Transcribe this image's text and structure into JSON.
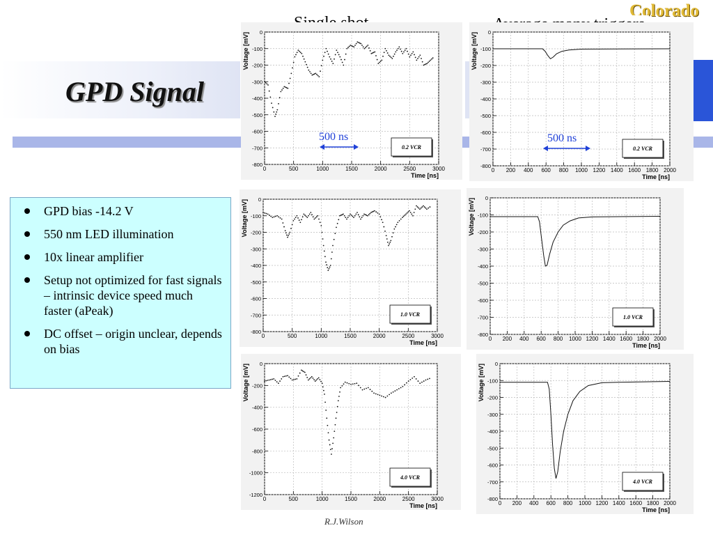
{
  "slide": {
    "title": "GPD Signal",
    "logo_text": "Colorado",
    "column_headers": [
      "Single shot",
      "Average many triggers"
    ],
    "bullets": [
      "GPD bias -14.2 V",
      "550 nm LED illumination",
      "10x linear amplifier",
      "Setup not optimized for fast signals – intrinsic device speed much faster (aPeak)",
      "DC offset – origin unclear, depends on bias"
    ],
    "author": "R.J.Wilson",
    "scale_label": "500 ns",
    "colors": {
      "title_band": "#dfe4f4",
      "stripe": "#a9b6e8",
      "accent_blue": "#2a55d8",
      "info_box": "#ccffff",
      "logo_gold": "#e1ba35",
      "scale_blue": "#1f40d8"
    }
  },
  "chart_data": [
    {
      "type": "scatter",
      "label": "0.2 VCR",
      "xlabel": "Time [ns]",
      "ylabel": "Voltage [mV]",
      "xlim": [
        0,
        3000
      ],
      "ylim": [
        -800,
        0
      ],
      "x_ticks": [
        0,
        500,
        1000,
        1500,
        2000,
        2500,
        3000
      ],
      "y_ticks": [
        0,
        -100,
        -200,
        -300,
        -400,
        -500,
        -600,
        -700,
        -800
      ],
      "grid": true,
      "scale_bar_ns": 500,
      "waveform": [
        [
          0,
          -300
        ],
        [
          60,
          -320
        ],
        [
          120,
          -430
        ],
        [
          180,
          -510
        ],
        [
          220,
          -470
        ],
        [
          280,
          -360
        ],
        [
          340,
          -330
        ],
        [
          400,
          -340
        ],
        [
          460,
          -250
        ],
        [
          520,
          -150
        ],
        [
          580,
          -110
        ],
        [
          640,
          -130
        ],
        [
          700,
          -180
        ],
        [
          760,
          -230
        ],
        [
          820,
          -260
        ],
        [
          880,
          -250
        ],
        [
          940,
          -270
        ],
        [
          1000,
          -170
        ],
        [
          1060,
          -100
        ],
        [
          1120,
          -150
        ],
        [
          1180,
          -190
        ],
        [
          1240,
          -110
        ],
        [
          1300,
          -150
        ],
        [
          1360,
          -200
        ],
        [
          1420,
          -100
        ],
        [
          1480,
          -80
        ],
        [
          1540,
          -90
        ],
        [
          1600,
          -60
        ],
        [
          1660,
          -70
        ],
        [
          1720,
          -100
        ],
        [
          1780,
          -80
        ],
        [
          1840,
          -130
        ],
        [
          1900,
          -120
        ],
        [
          1960,
          -190
        ],
        [
          2020,
          -170
        ],
        [
          2080,
          -100
        ],
        [
          2140,
          -140
        ],
        [
          2200,
          -160
        ],
        [
          2260,
          -120
        ],
        [
          2320,
          -90
        ],
        [
          2380,
          -130
        ],
        [
          2440,
          -100
        ],
        [
          2500,
          -150
        ],
        [
          2560,
          -120
        ],
        [
          2620,
          -170
        ],
        [
          2680,
          -140
        ],
        [
          2740,
          -200
        ],
        [
          2800,
          -190
        ],
        [
          2860,
          -170
        ],
        [
          2920,
          -150
        ]
      ]
    },
    {
      "type": "line",
      "label": "0.2 VCR",
      "xlabel": "Time [ns]",
      "ylabel": "Voltage [mV]",
      "xlim": [
        0,
        2000
      ],
      "ylim": [
        -800,
        0
      ],
      "x_ticks": [
        0,
        200,
        400,
        600,
        800,
        1000,
        1200,
        1400,
        1600,
        1800,
        2000
      ],
      "y_ticks": [
        0,
        -100,
        -200,
        -300,
        -400,
        -500,
        -600,
        -700,
        -800
      ],
      "grid": true,
      "scale_bar_ns": 500,
      "waveform": [
        [
          0,
          -100
        ],
        [
          560,
          -100
        ],
        [
          590,
          -115
        ],
        [
          620,
          -140
        ],
        [
          650,
          -160
        ],
        [
          680,
          -150
        ],
        [
          720,
          -130
        ],
        [
          780,
          -115
        ],
        [
          860,
          -107
        ],
        [
          1000,
          -102
        ],
        [
          2000,
          -100
        ]
      ]
    },
    {
      "type": "scatter",
      "label": "1.0 VCR",
      "xlabel": "Time [ns]",
      "ylabel": "Voltage [mV]",
      "xlim": [
        0,
        3000
      ],
      "ylim": [
        -800,
        0
      ],
      "x_ticks": [
        0,
        500,
        1000,
        1500,
        2000,
        2500,
        3000
      ],
      "y_ticks": [
        0,
        -100,
        -200,
        -300,
        -400,
        -500,
        -600,
        -700,
        -800
      ],
      "grid": true,
      "waveform": [
        [
          0,
          -80
        ],
        [
          80,
          -90
        ],
        [
          160,
          -110
        ],
        [
          240,
          -100
        ],
        [
          320,
          -120
        ],
        [
          380,
          -190
        ],
        [
          420,
          -230
        ],
        [
          460,
          -200
        ],
        [
          520,
          -130
        ],
        [
          580,
          -100
        ],
        [
          640,
          -140
        ],
        [
          700,
          -90
        ],
        [
          760,
          -110
        ],
        [
          820,
          -80
        ],
        [
          880,
          -120
        ],
        [
          940,
          -100
        ],
        [
          1000,
          -160
        ],
        [
          1040,
          -280
        ],
        [
          1080,
          -380
        ],
        [
          1120,
          -430
        ],
        [
          1160,
          -400
        ],
        [
          1200,
          -280
        ],
        [
          1260,
          -170
        ],
        [
          1320,
          -100
        ],
        [
          1380,
          -90
        ],
        [
          1440,
          -120
        ],
        [
          1500,
          -90
        ],
        [
          1560,
          -110
        ],
        [
          1620,
          -80
        ],
        [
          1680,
          -120
        ],
        [
          1740,
          -90
        ],
        [
          1800,
          -100
        ],
        [
          1860,
          -80
        ],
        [
          1920,
          -70
        ],
        [
          2000,
          -90
        ],
        [
          2060,
          -140
        ],
        [
          2120,
          -220
        ],
        [
          2160,
          -280
        ],
        [
          2200,
          -250
        ],
        [
          2260,
          -180
        ],
        [
          2320,
          -140
        ],
        [
          2400,
          -110
        ],
        [
          2460,
          -90
        ],
        [
          2520,
          -70
        ],
        [
          2580,
          -100
        ],
        [
          2640,
          -40
        ],
        [
          2700,
          -60
        ],
        [
          2760,
          -40
        ],
        [
          2820,
          -60
        ],
        [
          2900,
          -40
        ]
      ]
    },
    {
      "type": "line",
      "label": "1.0 VCR",
      "xlabel": "Time [ns]",
      "ylabel": "Voltage [mV]",
      "xlim": [
        0,
        2000
      ],
      "ylim": [
        -800,
        0
      ],
      "x_ticks": [
        0,
        200,
        400,
        600,
        800,
        1000,
        1200,
        1400,
        1600,
        1800,
        2000
      ],
      "y_ticks": [
        0,
        -100,
        -200,
        -300,
        -400,
        -500,
        -600,
        -700,
        -800
      ],
      "grid": true,
      "waveform": [
        [
          0,
          -110
        ],
        [
          560,
          -110
        ],
        [
          580,
          -140
        ],
        [
          600,
          -220
        ],
        [
          630,
          -340
        ],
        [
          650,
          -400
        ],
        [
          670,
          -395
        ],
        [
          700,
          -330
        ],
        [
          740,
          -260
        ],
        [
          800,
          -200
        ],
        [
          860,
          -160
        ],
        [
          940,
          -135
        ],
        [
          1040,
          -118
        ],
        [
          1200,
          -112
        ],
        [
          2000,
          -108
        ]
      ]
    },
    {
      "type": "scatter",
      "label": "4.0 VCR",
      "xlabel": "Time [ns]",
      "ylabel": "Voltage [mV]",
      "xlim": [
        0,
        3000
      ],
      "ylim": [
        -1200,
        0
      ],
      "x_ticks": [
        0,
        500,
        1000,
        1500,
        2000,
        2500,
        3000
      ],
      "y_ticks": [
        0,
        -200,
        -400,
        -600,
        -800,
        -1000,
        -1200
      ],
      "grid": true,
      "waveform": [
        [
          0,
          -160
        ],
        [
          80,
          -150
        ],
        [
          160,
          -140
        ],
        [
          240,
          -180
        ],
        [
          320,
          -120
        ],
        [
          400,
          -110
        ],
        [
          480,
          -150
        ],
        [
          560,
          -140
        ],
        [
          640,
          -60
        ],
        [
          700,
          -80
        ],
        [
          760,
          -150
        ],
        [
          820,
          -120
        ],
        [
          880,
          -160
        ],
        [
          940,
          -130
        ],
        [
          1000,
          -180
        ],
        [
          1040,
          -280
        ],
        [
          1080,
          -500
        ],
        [
          1120,
          -700
        ],
        [
          1160,
          -830
        ],
        [
          1200,
          -680
        ],
        [
          1240,
          -500
        ],
        [
          1280,
          -340
        ],
        [
          1320,
          -220
        ],
        [
          1400,
          -170
        ],
        [
          1500,
          -190
        ],
        [
          1600,
          -180
        ],
        [
          1700,
          -240
        ],
        [
          1800,
          -220
        ],
        [
          1900,
          -270
        ],
        [
          2000,
          -290
        ],
        [
          2100,
          -310
        ],
        [
          2200,
          -270
        ],
        [
          2300,
          -240
        ],
        [
          2400,
          -210
        ],
        [
          2500,
          -160
        ],
        [
          2600,
          -120
        ],
        [
          2700,
          -180
        ],
        [
          2800,
          -150
        ],
        [
          2900,
          -130
        ]
      ]
    },
    {
      "type": "line",
      "label": "4.0 VCR",
      "xlabel": "Time [ns]",
      "ylabel": "Voltage [mV]",
      "xlim": [
        0,
        2000
      ],
      "ylim": [
        -800,
        0
      ],
      "x_ticks": [
        0,
        200,
        400,
        600,
        800,
        1000,
        1200,
        1400,
        1600,
        1800,
        2000
      ],
      "y_ticks": [
        0,
        -100,
        -200,
        -300,
        -400,
        -500,
        -600,
        -700,
        -800
      ],
      "grid": true,
      "waveform": [
        [
          0,
          -110
        ],
        [
          560,
          -110
        ],
        [
          580,
          -150
        ],
        [
          600,
          -300
        ],
        [
          620,
          -480
        ],
        [
          640,
          -620
        ],
        [
          660,
          -680
        ],
        [
          680,
          -640
        ],
        [
          710,
          -520
        ],
        [
          750,
          -400
        ],
        [
          800,
          -300
        ],
        [
          860,
          -220
        ],
        [
          940,
          -165
        ],
        [
          1040,
          -130
        ],
        [
          1200,
          -113
        ],
        [
          1400,
          -110
        ],
        [
          2000,
          -105
        ]
      ]
    }
  ]
}
